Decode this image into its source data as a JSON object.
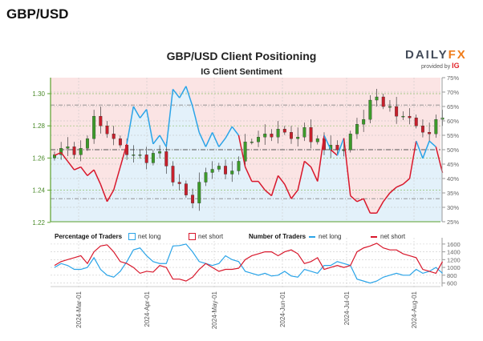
{
  "header": {
    "pair": "GBP/USD",
    "title": "GBP/USD Client Positioning",
    "subtitle": "IG Client Sentiment",
    "logo": {
      "daily": "DAILY",
      "fx": "FX",
      "provided": "provided by",
      "ig": "IG"
    }
  },
  "legend": {
    "pct_label": "Percentage of Traders",
    "num_label": "Number of Traders",
    "net_long": "net long",
    "net_short": "net short"
  },
  "colors": {
    "long": "#2aa4e8",
    "short": "#d8172b",
    "pink": "#fbe4e4",
    "blue": "#e3f1fa",
    "axis_green": "#5aa02c",
    "bull": "#3c9a2a",
    "bear": "#c6202c"
  },
  "chart_data": [
    {
      "type": "candlestick+line",
      "title": "IG Client Sentiment",
      "x_start": "2024-02-19",
      "x_step_days": 3,
      "price_axis": {
        "ylim": [
          1.22,
          1.31
        ],
        "ticks": [
          "1.22",
          "1.24",
          "1.26",
          "1.28",
          "1.30"
        ]
      },
      "pct_axis": {
        "ylim": [
          25,
          75
        ],
        "ticks": [
          "25%",
          "30%",
          "35%",
          "40%",
          "45%",
          "50%",
          "55%",
          "60%",
          "65%",
          "70%",
          "75%"
        ]
      },
      "price_close": [
        1.262,
        1.266,
        1.267,
        1.262,
        1.266,
        1.272,
        1.286,
        1.28,
        1.275,
        1.272,
        1.268,
        1.262,
        1.262,
        1.262,
        1.257,
        1.263,
        1.264,
        1.255,
        1.245,
        1.244,
        1.237,
        1.232,
        1.245,
        1.251,
        1.253,
        1.255,
        1.25,
        1.252,
        1.258,
        1.27,
        1.27,
        1.273,
        1.275,
        1.273,
        1.278,
        1.276,
        1.272,
        1.273,
        1.279,
        1.27,
        1.272,
        1.265,
        1.268,
        1.265,
        1.265,
        1.275,
        1.281,
        1.284,
        1.296,
        1.298,
        1.292,
        1.292,
        1.286,
        1.286,
        1.285,
        1.28,
        1.276,
        1.275,
        1.284,
        1.285
      ],
      "net_long_pct": [
        48,
        49,
        46,
        43,
        44,
        41,
        43,
        38,
        32,
        36,
        44,
        52,
        65,
        61,
        64,
        52,
        55,
        51,
        71,
        68,
        72,
        65,
        56,
        51,
        56,
        51,
        54,
        58,
        55,
        44,
        39,
        39,
        36,
        34,
        41,
        38,
        33,
        36,
        46,
        44,
        39,
        55,
        50,
        48,
        54,
        34,
        32,
        33,
        28,
        28,
        32,
        35,
        37,
        38,
        40,
        53,
        47,
        53,
        51,
        42
      ]
    },
    {
      "type": "line",
      "legend": "Number of Traders",
      "ylim": [
        550,
        1700
      ],
      "ticks": [
        "600",
        "800",
        "1000",
        "1200",
        "1400",
        "1600"
      ],
      "x_ticks": [
        "2024-Mar-01",
        "2024-Apr-01",
        "2024-May-01",
        "2024-Jun-01",
        "2024-Jul-01",
        "2024-Aug-01"
      ],
      "series": [
        {
          "name": "net long",
          "values": [
            1000,
            1100,
            1050,
            950,
            950,
            1000,
            1250,
            950,
            800,
            750,
            900,
            1150,
            1450,
            1500,
            1300,
            1150,
            1100,
            1100,
            1550,
            1560,
            1600,
            1400,
            1150,
            1100,
            1050,
            1100,
            1300,
            1200,
            1150,
            900,
            850,
            800,
            850,
            780,
            800,
            900,
            780,
            750,
            950,
            900,
            850,
            1050,
            1050,
            1150,
            1100,
            1050,
            700,
            650,
            600,
            650,
            750,
            800,
            850,
            800,
            800,
            950,
            850,
            900,
            1000,
            850
          ]
        },
        {
          "name": "net short",
          "values": [
            1050,
            1150,
            1200,
            1250,
            1300,
            1100,
            1400,
            1550,
            1580,
            1400,
            1150,
            1100,
            1000,
            850,
            900,
            880,
            1050,
            1000,
            700,
            700,
            650,
            750,
            950,
            1100,
            1000,
            900,
            950,
            950,
            980,
            1200,
            1300,
            1350,
            1400,
            1400,
            1300,
            1400,
            1450,
            1350,
            1100,
            1150,
            1250,
            950,
            1000,
            1050,
            1000,
            1050,
            1400,
            1500,
            1550,
            1620,
            1500,
            1450,
            1450,
            1350,
            1300,
            1250,
            950,
            900,
            850,
            1150
          ]
        }
      ]
    }
  ]
}
